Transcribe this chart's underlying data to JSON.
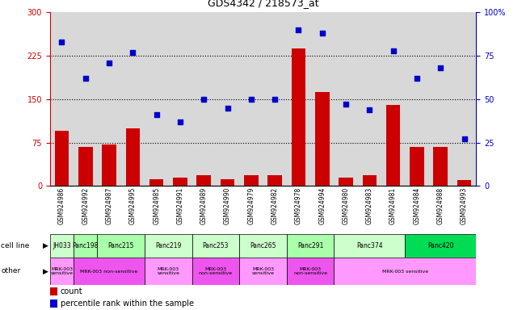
{
  "title": "GDS4342 / 218573_at",
  "samples": [
    "GSM924986",
    "GSM924992",
    "GSM924987",
    "GSM924995",
    "GSM924985",
    "GSM924991",
    "GSM924989",
    "GSM924990",
    "GSM924979",
    "GSM924982",
    "GSM924978",
    "GSM924994",
    "GSM924980",
    "GSM924983",
    "GSM924981",
    "GSM924984",
    "GSM924988",
    "GSM924993"
  ],
  "bar_values": [
    95,
    68,
    72,
    100,
    12,
    15,
    18,
    12,
    18,
    18,
    238,
    162,
    15,
    18,
    140,
    68,
    68,
    10
  ],
  "scatter_values": [
    83,
    62,
    71,
    77,
    41,
    37,
    50,
    45,
    50,
    50,
    90,
    88,
    47,
    44,
    78,
    62,
    68,
    27
  ],
  "bar_color": "#cc0000",
  "scatter_color": "#0000cc",
  "ylim_left": [
    0,
    300
  ],
  "ylim_right": [
    0,
    100
  ],
  "yticks_left": [
    0,
    75,
    150,
    225,
    300
  ],
  "yticks_right": [
    0,
    25,
    50,
    75,
    100
  ],
  "cell_line_groups": [
    {
      "label": "JH033",
      "start": 0,
      "end": 1,
      "color": "#ccffcc"
    },
    {
      "label": "Panc198",
      "start": 1,
      "end": 2,
      "color": "#aaffaa"
    },
    {
      "label": "Panc215",
      "start": 2,
      "end": 4,
      "color": "#aaffaa"
    },
    {
      "label": "Panc219",
      "start": 4,
      "end": 6,
      "color": "#ccffcc"
    },
    {
      "label": "Panc253",
      "start": 6,
      "end": 8,
      "color": "#ccffcc"
    },
    {
      "label": "Panc265",
      "start": 8,
      "end": 10,
      "color": "#ccffcc"
    },
    {
      "label": "Panc291",
      "start": 10,
      "end": 12,
      "color": "#aaffaa"
    },
    {
      "label": "Panc374",
      "start": 12,
      "end": 15,
      "color": "#ccffcc"
    },
    {
      "label": "Panc420",
      "start": 15,
      "end": 18,
      "color": "#00dd55"
    }
  ],
  "other_groups": [
    {
      "label": "MRK-003\nsensitive",
      "start": 0,
      "end": 1,
      "color": "#ff99ff"
    },
    {
      "label": "MRK-003 non-sensitive",
      "start": 1,
      "end": 4,
      "color": "#ee55ee"
    },
    {
      "label": "MRK-003\nsensitive",
      "start": 4,
      "end": 6,
      "color": "#ff99ff"
    },
    {
      "label": "MRK-003\nnon-sensitive",
      "start": 6,
      "end": 8,
      "color": "#ee55ee"
    },
    {
      "label": "MRK-003\nsensitive",
      "start": 8,
      "end": 10,
      "color": "#ff99ff"
    },
    {
      "label": "MRK-003\nnon-sensitive",
      "start": 10,
      "end": 12,
      "color": "#ee55ee"
    },
    {
      "label": "MRK-003 sensitive",
      "start": 12,
      "end": 18,
      "color": "#ff99ff"
    }
  ],
  "bg_color": "#d8d8d8",
  "left_axis_color": "#cc0000",
  "right_axis_color": "#0000cc",
  "hline_y": [
    75,
    150,
    225
  ],
  "fig_width": 6.51,
  "fig_height": 3.84
}
